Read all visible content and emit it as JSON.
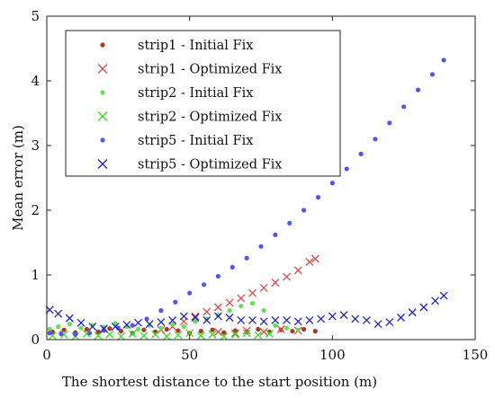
{
  "chart_data": {
    "type": "scatter",
    "xlabel": "The shortest distance to the start position (m)",
    "ylabel": "Mean error (m)",
    "xlim": [
      0,
      150
    ],
    "ylim": [
      0,
      5
    ],
    "xticks": [
      0,
      50,
      100,
      150
    ],
    "yticks": [
      0,
      1,
      2,
      3,
      4,
      5
    ],
    "grid": false,
    "legend_position": "top-left",
    "series": [
      {
        "name": "strip1 - Initial Fix",
        "marker": "dot",
        "color": "#a83a2a",
        "points": [
          [
            2,
            0.12
          ],
          [
            6,
            0.15
          ],
          [
            10,
            0.11
          ],
          [
            14,
            0.16
          ],
          [
            18,
            0.12
          ],
          [
            22,
            0.17
          ],
          [
            26,
            0.13
          ],
          [
            30,
            0.1
          ],
          [
            34,
            0.15
          ],
          [
            38,
            0.12
          ],
          [
            42,
            0.16
          ],
          [
            46,
            0.14
          ],
          [
            50,
            0.1
          ],
          [
            54,
            0.13
          ],
          [
            58,
            0.15
          ],
          [
            62,
            0.11
          ],
          [
            66,
            0.14
          ],
          [
            70,
            0.12
          ],
          [
            74,
            0.16
          ],
          [
            78,
            0.12
          ],
          [
            82,
            0.15
          ],
          [
            86,
            0.13
          ],
          [
            90,
            0.16
          ],
          [
            94,
            0.13
          ]
        ]
      },
      {
        "name": "strip1 - Optimized Fix",
        "marker": "x",
        "color": "#e04a4a",
        "points": [
          [
            40,
            0.15
          ],
          [
            44,
            0.2
          ],
          [
            48,
            0.28
          ],
          [
            52,
            0.36
          ],
          [
            56,
            0.43
          ],
          [
            60,
            0.5
          ],
          [
            64,
            0.57
          ],
          [
            68,
            0.64
          ],
          [
            72,
            0.72
          ],
          [
            76,
            0.8
          ],
          [
            80,
            0.88
          ],
          [
            84,
            0.97
          ],
          [
            88,
            1.07
          ],
          [
            92,
            1.2
          ],
          [
            94,
            1.25
          ],
          [
            60,
            0.12
          ],
          [
            66,
            0.1
          ],
          [
            70,
            0.14
          ],
          [
            76,
            0.12
          ],
          [
            82,
            0.16
          ],
          [
            88,
            0.14
          ]
        ]
      },
      {
        "name": "strip2 - Initial Fix",
        "marker": "dot",
        "color": "#66dd55",
        "points": [
          [
            1,
            0.16
          ],
          [
            4,
            0.2
          ],
          [
            8,
            0.24
          ],
          [
            12,
            0.18
          ],
          [
            16,
            0.22
          ],
          [
            20,
            0.19
          ],
          [
            24,
            0.25
          ],
          [
            28,
            0.2
          ],
          [
            32,
            0.16
          ],
          [
            36,
            0.22
          ],
          [
            40,
            0.18
          ],
          [
            44,
            0.24
          ],
          [
            48,
            0.2
          ],
          [
            52,
            0.28
          ],
          [
            56,
            0.32
          ],
          [
            60,
            0.38
          ],
          [
            64,
            0.45
          ],
          [
            68,
            0.52
          ],
          [
            72,
            0.56
          ],
          [
            76,
            0.45
          ],
          [
            80,
            0.22
          ],
          [
            84,
            0.18
          ],
          [
            88,
            0.15
          ]
        ]
      },
      {
        "name": "strip2 - Optimized Fix",
        "marker": "x",
        "color": "#33dd22",
        "points": [
          [
            2,
            0.06
          ],
          [
            6,
            0.08
          ],
          [
            10,
            0.05
          ],
          [
            14,
            0.09
          ],
          [
            18,
            0.06
          ],
          [
            22,
            0.08
          ],
          [
            26,
            0.05
          ],
          [
            30,
            0.09
          ],
          [
            34,
            0.06
          ],
          [
            38,
            0.08
          ],
          [
            42,
            0.05
          ],
          [
            46,
            0.07
          ],
          [
            50,
            0.1
          ],
          [
            54,
            0.06
          ],
          [
            58,
            0.08
          ],
          [
            62,
            0.05
          ],
          [
            66,
            0.08
          ],
          [
            70,
            0.1
          ],
          [
            74,
            0.07
          ],
          [
            78,
            0.09
          ]
        ]
      },
      {
        "name": "strip5 - Initial Fix",
        "marker": "dot",
        "color": "#5555ee",
        "points": [
          [
            1,
            0.1
          ],
          [
            5,
            0.09
          ],
          [
            10,
            0.08
          ],
          [
            15,
            0.1
          ],
          [
            20,
            0.14
          ],
          [
            25,
            0.18
          ],
          [
            30,
            0.22
          ],
          [
            35,
            0.32
          ],
          [
            40,
            0.45
          ],
          [
            45,
            0.58
          ],
          [
            50,
            0.72
          ],
          [
            55,
            0.85
          ],
          [
            60,
            0.98
          ],
          [
            65,
            1.12
          ],
          [
            70,
            1.26
          ],
          [
            75,
            1.44
          ],
          [
            80,
            1.62
          ],
          [
            85,
            1.8
          ],
          [
            90,
            2.0
          ],
          [
            95,
            2.2
          ],
          [
            100,
            2.42
          ],
          [
            105,
            2.64
          ],
          [
            110,
            2.87
          ],
          [
            115,
            3.1
          ],
          [
            120,
            3.35
          ],
          [
            125,
            3.6
          ],
          [
            130,
            3.86
          ],
          [
            135,
            4.1
          ],
          [
            139,
            4.32
          ]
        ]
      },
      {
        "name": "strip5 - Optimized Fix",
        "marker": "x",
        "color": "#2222cc",
        "points": [
          [
            1,
            0.46
          ],
          [
            4,
            0.4
          ],
          [
            8,
            0.33
          ],
          [
            12,
            0.26
          ],
          [
            16,
            0.2
          ],
          [
            20,
            0.17
          ],
          [
            24,
            0.2
          ],
          [
            28,
            0.23
          ],
          [
            32,
            0.26
          ],
          [
            36,
            0.24
          ],
          [
            40,
            0.27
          ],
          [
            44,
            0.3
          ],
          [
            48,
            0.36
          ],
          [
            52,
            0.34
          ],
          [
            56,
            0.3
          ],
          [
            60,
            0.36
          ],
          [
            64,
            0.34
          ],
          [
            68,
            0.3
          ],
          [
            72,
            0.3
          ],
          [
            76,
            0.28
          ],
          [
            80,
            0.3
          ],
          [
            84,
            0.3
          ],
          [
            88,
            0.28
          ],
          [
            92,
            0.3
          ],
          [
            96,
            0.32
          ],
          [
            100,
            0.36
          ],
          [
            104,
            0.38
          ],
          [
            108,
            0.32
          ],
          [
            112,
            0.3
          ],
          [
            116,
            0.24
          ],
          [
            120,
            0.27
          ],
          [
            124,
            0.34
          ],
          [
            128,
            0.42
          ],
          [
            132,
            0.5
          ],
          [
            136,
            0.6
          ],
          [
            139,
            0.68
          ]
        ]
      }
    ]
  }
}
